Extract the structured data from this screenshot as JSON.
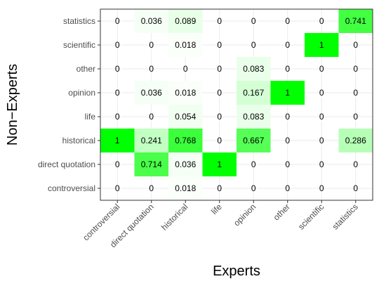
{
  "chart_data": {
    "type": "heatmap",
    "xlabel": "Experts",
    "ylabel": "Non−Experts",
    "x_categories": [
      "controversial",
      "direct quotation",
      "historical",
      "life",
      "opinion",
      "other",
      "scientific",
      "statistics"
    ],
    "y_categories": [
      "controversial",
      "direct quotation",
      "historical",
      "life",
      "opinion",
      "other",
      "scientific",
      "statistics"
    ],
    "value_range": [
      0,
      1
    ],
    "color_low": "#ffffff",
    "color_high": "#00ff00",
    "grid": true,
    "legend": "none",
    "cells": [
      [
        "0",
        "0",
        "0.018",
        "0",
        "0",
        "0",
        "0",
        "0"
      ],
      [
        "0",
        "0.714",
        "0.036",
        "1",
        "0",
        "0",
        "0",
        "0"
      ],
      [
        "1",
        "0.241",
        "0.768",
        "0",
        "0.667",
        "0",
        "0",
        "0.286"
      ],
      [
        "0",
        "0",
        "0.054",
        "0",
        "0.083",
        "0",
        "0",
        "0"
      ],
      [
        "0",
        "0.036",
        "0.018",
        "0",
        "0.167",
        "1",
        "0",
        "0"
      ],
      [
        "0",
        "0",
        "0",
        "0",
        "0.083",
        "0",
        "0",
        "0"
      ],
      [
        "0",
        "0",
        "0.018",
        "0",
        "0",
        "0",
        "1",
        "0"
      ],
      [
        "0",
        "0.036",
        "0.089",
        "0",
        "0",
        "0",
        "0",
        "0.741"
      ]
    ]
  }
}
